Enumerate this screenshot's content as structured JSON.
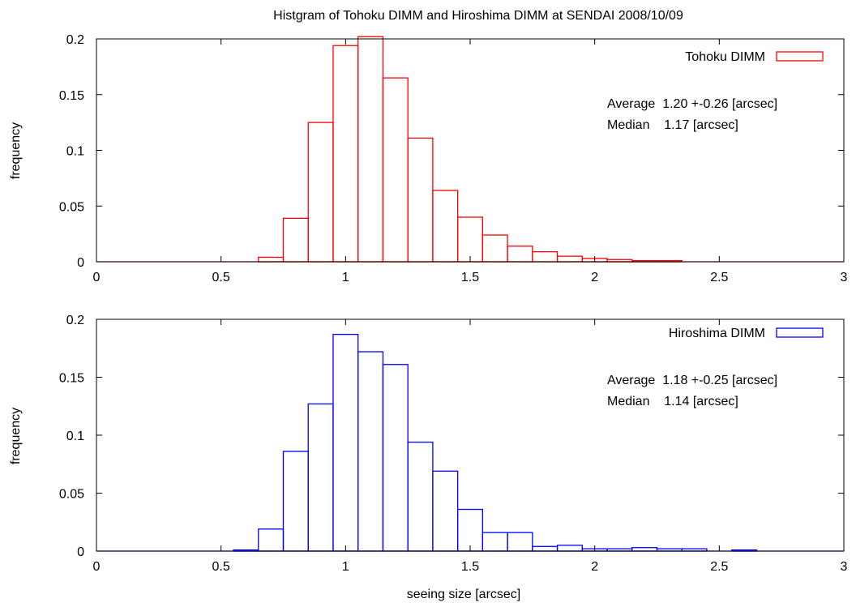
{
  "title": "Histgram of Tohoku DIMM and Hiroshima DIMM at SENDAI 2008/10/09",
  "xlabel": "seeing size [arcsec]",
  "chart_data": [
    {
      "type": "bar",
      "ylabel": "frequency",
      "xlim": [
        0,
        3
      ],
      "ylim": [
        0,
        0.2
      ],
      "x_ticks": [
        "0",
        "0.5",
        "1",
        "1.5",
        "2",
        "2.5",
        "3"
      ],
      "y_ticks": [
        "0",
        "0.05",
        "0.1",
        "0.15",
        "0.2"
      ],
      "grid": false,
      "legend_position": "top-right",
      "series": [
        {
          "name": "Tohoku DIMM",
          "color": "#ff0000",
          "bin_width": 0.1,
          "bin_centers": [
            0.7,
            0.8,
            0.9,
            1.0,
            1.1,
            1.2,
            1.3,
            1.4,
            1.5,
            1.6,
            1.7,
            1.8,
            1.9,
            2.0,
            2.1,
            2.2,
            2.3
          ],
          "values": [
            0.004,
            0.039,
            0.125,
            0.194,
            0.202,
            0.165,
            0.111,
            0.064,
            0.04,
            0.024,
            0.014,
            0.009,
            0.005,
            0.003,
            0.002,
            0.001,
            0.001
          ]
        }
      ],
      "annotations": [
        "Average  1.20 +-0.26 [arcsec]",
        "Median    1.17 [arcsec]"
      ]
    },
    {
      "type": "bar",
      "ylabel": "frequency",
      "xlabel": "seeing size [arcsec]",
      "xlim": [
        0,
        3
      ],
      "ylim": [
        0,
        0.2
      ],
      "x_ticks": [
        "0",
        "0.5",
        "1",
        "1.5",
        "2",
        "2.5",
        "3"
      ],
      "y_ticks": [
        "0",
        "0.05",
        "0.1",
        "0.15",
        "0.2"
      ],
      "grid": false,
      "legend_position": "top-right",
      "series": [
        {
          "name": "Hiroshima DIMM",
          "color": "#0000ff",
          "bin_width": 0.1,
          "bin_centers": [
            0.6,
            0.7,
            0.8,
            0.9,
            1.0,
            1.1,
            1.2,
            1.3,
            1.4,
            1.5,
            1.6,
            1.7,
            1.8,
            1.9,
            2.0,
            2.1,
            2.2,
            2.3,
            2.4,
            2.6
          ],
          "values": [
            0.001,
            0.019,
            0.086,
            0.127,
            0.187,
            0.172,
            0.161,
            0.094,
            0.069,
            0.036,
            0.016,
            0.016,
            0.004,
            0.005,
            0.002,
            0.002,
            0.003,
            0.002,
            0.002,
            0.001
          ]
        }
      ],
      "annotations": [
        "Average  1.18 +-0.25 [arcsec]",
        "Median    1.14 [arcsec]"
      ]
    }
  ]
}
